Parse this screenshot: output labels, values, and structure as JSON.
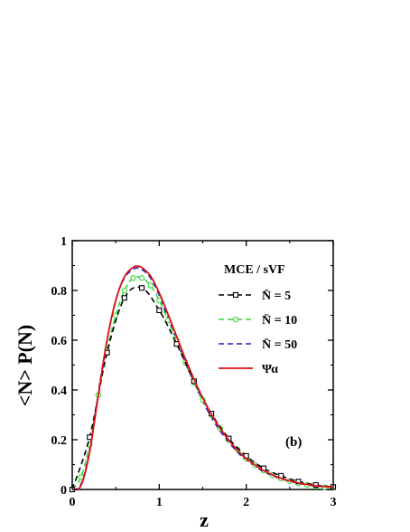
{
  "chart_data": {
    "type": "line",
    "xlabel": "z",
    "ylabel": "<N> P(N)",
    "xlim": [
      0,
      3
    ],
    "ylim": [
      0,
      1
    ],
    "xticks": [
      0,
      1,
      2,
      3
    ],
    "xtick_labels": [
      "0",
      "1",
      "2",
      "3"
    ],
    "yticks": [
      0,
      0.2,
      0.4,
      0.6,
      0.8,
      1
    ],
    "ytick_labels": [
      "0",
      "0.2",
      "0.4",
      "0.6",
      "0.8",
      "1"
    ],
    "grid": false,
    "legend": {
      "title": "MCE / sVF",
      "placement": "top-right"
    },
    "annotation": "(b)",
    "series": [
      {
        "name": "N̄ = 5",
        "color": "#000000",
        "style": "dashed",
        "marker": "square",
        "x": [
          0.0,
          0.2,
          0.4,
          0.6,
          0.8,
          1.0,
          1.2,
          1.4,
          1.6,
          1.8,
          2.0,
          2.2,
          2.4,
          2.6,
          2.8,
          3.0
        ],
        "y": [
          0.0,
          0.21,
          0.55,
          0.77,
          0.81,
          0.72,
          0.585,
          0.435,
          0.305,
          0.205,
          0.135,
          0.085,
          0.055,
          0.032,
          0.018,
          0.01
        ]
      },
      {
        "name": "N̄ = 10",
        "color": "#33dd33",
        "style": "dashed",
        "marker": "circle",
        "x": [
          0.0,
          0.1,
          0.2,
          0.3,
          0.4,
          0.5,
          0.6,
          0.7,
          0.8,
          0.9,
          1.0,
          1.1,
          1.2,
          1.3,
          1.4,
          1.5,
          1.6,
          1.7,
          1.8,
          1.9,
          2.0,
          2.1,
          2.2,
          2.3,
          2.4,
          2.5,
          2.6,
          2.7,
          2.8,
          2.9,
          3.0
        ],
        "y": [
          0.0,
          0.05,
          0.18,
          0.38,
          0.56,
          0.7,
          0.8,
          0.85,
          0.85,
          0.82,
          0.76,
          0.68,
          0.6,
          0.51,
          0.43,
          0.36,
          0.3,
          0.245,
          0.2,
          0.16,
          0.125,
          0.098,
          0.076,
          0.058,
          0.044,
          0.033,
          0.025,
          0.018,
          0.013,
          0.009,
          0.007
        ]
      },
      {
        "name": "N̄ = 50",
        "color": "#2222cc",
        "style": "dashed",
        "marker": "none",
        "x": [
          0.0,
          0.1,
          0.2,
          0.3,
          0.4,
          0.5,
          0.6,
          0.7,
          0.75,
          0.8,
          0.9,
          1.0,
          1.1,
          1.2,
          1.3,
          1.4,
          1.5,
          1.6,
          1.7,
          1.8,
          1.9,
          2.0,
          2.2,
          2.4,
          2.6,
          2.8,
          3.0
        ],
        "y": [
          0.0,
          0.02,
          0.16,
          0.39,
          0.6,
          0.76,
          0.85,
          0.885,
          0.89,
          0.885,
          0.85,
          0.78,
          0.69,
          0.6,
          0.51,
          0.43,
          0.355,
          0.29,
          0.235,
          0.19,
          0.15,
          0.118,
          0.072,
          0.043,
          0.025,
          0.014,
          0.008
        ]
      },
      {
        "name": "Ψα",
        "color": "#dd1111",
        "style": "solid",
        "marker": "none",
        "x": [
          0.0,
          0.1,
          0.2,
          0.3,
          0.4,
          0.5,
          0.6,
          0.7,
          0.75,
          0.8,
          0.9,
          1.0,
          1.1,
          1.2,
          1.3,
          1.4,
          1.5,
          1.6,
          1.7,
          1.8,
          1.9,
          2.0,
          2.2,
          2.4,
          2.6,
          2.8,
          3.0
        ],
        "y": [
          0.0,
          0.015,
          0.15,
          0.38,
          0.6,
          0.76,
          0.855,
          0.893,
          0.897,
          0.892,
          0.858,
          0.79,
          0.705,
          0.615,
          0.525,
          0.443,
          0.368,
          0.302,
          0.246,
          0.198,
          0.157,
          0.124,
          0.076,
          0.045,
          0.026,
          0.015,
          0.009
        ]
      }
    ]
  }
}
